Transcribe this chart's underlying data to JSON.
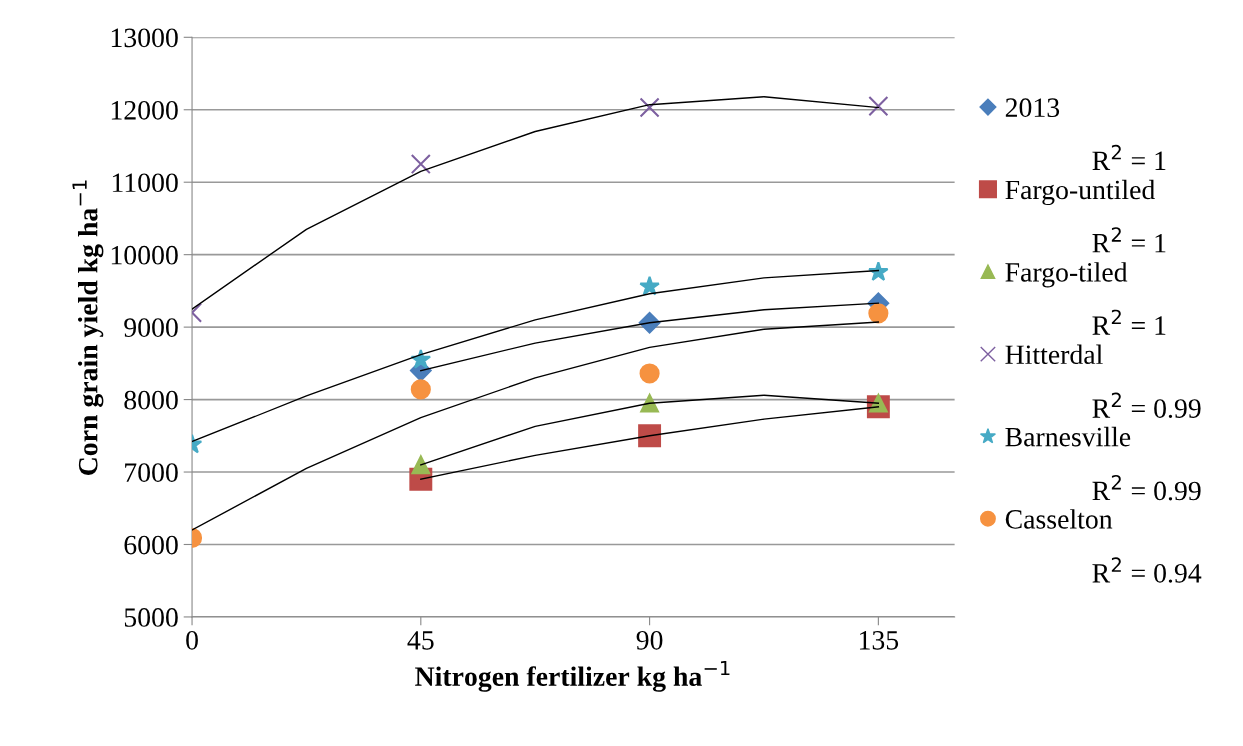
{
  "chart_data": {
    "type": "scatter",
    "xlabel": "Nitrogen fertilizer kg ha$^{−1}$",
    "ylabel": "Corn grain yield kg ha$^{−1}$",
    "xlim": [
      0,
      150
    ],
    "xticks": [
      0,
      45,
      90,
      135
    ],
    "ylim": [
      5000,
      13000
    ],
    "yticks": [
      5000,
      6000,
      7000,
      8000,
      9000,
      10000,
      11000,
      12000,
      13000
    ],
    "grid": "y",
    "legend": "right",
    "series": [
      {
        "name": "2013",
        "color": "#4a7ebb",
        "marker": "diamond",
        "x": [
          45,
          90,
          135
        ],
        "values": [
          8400,
          9060,
          9330
        ]
      },
      {
        "name": "Fargo-untiled",
        "color": "#be4b48",
        "marker": "square",
        "x": [
          45,
          90,
          135
        ],
        "values": [
          6900,
          7500,
          7900
        ]
      },
      {
        "name": "Fargo-tiled",
        "color": "#98b954",
        "marker": "triangle",
        "x": [
          45,
          90,
          135
        ],
        "values": [
          7100,
          7950,
          7950
        ]
      },
      {
        "name": "Hitterdal",
        "color": "#7d60a0",
        "marker": "cross",
        "x": [
          0,
          45,
          90,
          135
        ],
        "values": [
          9200,
          11250,
          12030,
          12050
        ]
      },
      {
        "name": "Barnesville",
        "color": "#46aac5",
        "marker": "star",
        "x": [
          0,
          45,
          90,
          135
        ],
        "values": [
          7380,
          8550,
          9560,
          9760
        ]
      },
      {
        "name": "Casselton",
        "color": "#f69240",
        "marker": "circle",
        "x": [
          0,
          45,
          90,
          135
        ],
        "values": [
          6090,
          8140,
          8360,
          9190
        ]
      },
      {
        "type": "line",
        "color": "#000000",
        "marker": "none",
        "x": [
          45,
          67.5,
          90,
          112.5,
          135
        ],
        "values": [
          8400,
          8780,
          9060,
          9240,
          9330
        ]
      },
      {
        "type": "line",
        "color": "#000000",
        "marker": "none",
        "x": [
          45,
          67.5,
          90,
          112.5,
          135
        ],
        "values": [
          6900,
          7230,
          7500,
          7730,
          7900
        ]
      },
      {
        "type": "line",
        "color": "#000000",
        "marker": "none",
        "x": [
          45,
          67.5,
          90,
          112.5,
          135
        ],
        "values": [
          7100,
          7630,
          7950,
          8060,
          7950
        ]
      },
      {
        "type": "line",
        "color": "#000000",
        "marker": "none",
        "x": [
          0,
          22.5,
          45,
          67.5,
          90,
          112.5,
          135
        ],
        "values": [
          9250,
          10350,
          11150,
          11700,
          12070,
          12180,
          12030
        ]
      },
      {
        "type": "line",
        "color": "#000000",
        "marker": "none",
        "x": [
          0,
          22.5,
          45,
          67.5,
          90,
          112.5,
          135
        ],
        "values": [
          7420,
          8050,
          8620,
          9100,
          9460,
          9680,
          9780
        ]
      },
      {
        "type": "line",
        "color": "#000000",
        "marker": "none",
        "x": [
          0,
          22.5,
          45,
          67.5,
          90,
          112.5,
          135
        ],
        "values": [
          6200,
          7050,
          7750,
          8300,
          8720,
          8970,
          9070
        ]
      }
    ],
    "annotations": [
      "R$^{2}$ = 1",
      "R$^{2}$ = 1",
      "R$^{2}$ = 1",
      "R$^{2}$ = 0.99",
      "R$^{2}$ = 0.99",
      "R$^{2}$ = 0.94"
    ]
  }
}
